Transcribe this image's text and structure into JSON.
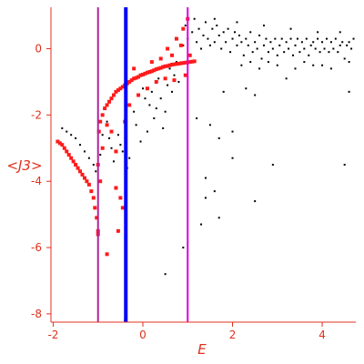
{
  "chart_data": {
    "type": "scatter",
    "title": "",
    "xlabel": "E",
    "ylabel": "<J3>",
    "xlim": [
      -2.05,
      4.75
    ],
    "ylim": [
      -8.25,
      1.25
    ],
    "xticks": [
      "-2",
      "0",
      "2",
      "4"
    ],
    "yticks": [
      "0",
      "-2",
      "-4",
      "-6",
      "-8"
    ],
    "xtick_values": [
      -2,
      0,
      2,
      4
    ],
    "ytick_values": [
      0,
      -2,
      -4,
      -6,
      -8
    ],
    "grid": false,
    "legend": "none",
    "colors": {
      "axis": "#e0301e",
      "black_points": "#000000",
      "red_points": "#ff1a1a",
      "vline_purple": "#b0249a",
      "vline_blue": "#0000ff",
      "vline_magenta": "#e000e0"
    },
    "vertical_lines": [
      {
        "x": -1.0,
        "color": "#b0249a",
        "width": 2
      },
      {
        "x": -0.38,
        "color": "#0000ff",
        "width": 4
      },
      {
        "x": 1.0,
        "color": "#e000e0",
        "width": 2
      }
    ],
    "series": [
      {
        "marker": "small-dot",
        "color": "#000000",
        "points": [
          [
            -1.8,
            -2.4
          ],
          [
            -1.7,
            -2.5
          ],
          [
            -1.6,
            -2.6
          ],
          [
            -1.5,
            -2.7
          ],
          [
            -1.4,
            -2.9
          ],
          [
            -1.3,
            -3.1
          ],
          [
            -1.2,
            -3.3
          ],
          [
            -1.1,
            -3.5
          ],
          [
            -1.05,
            -3.7
          ],
          [
            -0.95,
            -3.2
          ],
          [
            -0.9,
            -2.6
          ],
          [
            -0.8,
            -2.2
          ],
          [
            -0.75,
            -2.7
          ],
          [
            -0.7,
            -3.0
          ],
          [
            -0.65,
            -3.4
          ],
          [
            -0.55,
            -2.6
          ],
          [
            -0.5,
            -2.9
          ],
          [
            -0.45,
            -3.1
          ],
          [
            -0.35,
            -3.6
          ],
          [
            -0.3,
            -3.3
          ],
          [
            -0.2,
            -1.9
          ],
          [
            -0.15,
            -2.3
          ],
          [
            -0.05,
            -2.8
          ],
          [
            0.0,
            -1.2
          ],
          [
            0.05,
            -1.5
          ],
          [
            0.1,
            -2.5
          ],
          [
            0.15,
            -1.7
          ],
          [
            0.2,
            -1.3
          ],
          [
            0.25,
            -2.1
          ],
          [
            0.3,
            -1.8
          ],
          [
            0.35,
            -0.9
          ],
          [
            0.4,
            -1.5
          ],
          [
            0.45,
            -2.4
          ],
          [
            0.5,
            -1.9
          ],
          [
            0.55,
            -1.1
          ],
          [
            0.6,
            -0.6
          ],
          [
            0.65,
            -1.3
          ],
          [
            0.7,
            -0.8
          ],
          [
            0.75,
            -0.4
          ],
          [
            0.8,
            -1.0
          ],
          [
            0.9,
            0.1
          ],
          [
            0.95,
            0.7
          ],
          [
            1.0,
            0.3
          ],
          [
            1.05,
            -0.2
          ],
          [
            1.1,
            0.5
          ],
          [
            1.15,
            0.9
          ],
          [
            1.2,
            0.2
          ],
          [
            1.25,
            0.6
          ],
          [
            1.3,
            0.0
          ],
          [
            1.35,
            0.4
          ],
          [
            1.4,
            0.8
          ],
          [
            1.45,
            0.3
          ],
          [
            1.5,
            0.1
          ],
          [
            1.55,
            0.6
          ],
          [
            1.6,
            0.2
          ],
          [
            1.65,
            0.7
          ],
          [
            1.7,
            0.4
          ],
          [
            1.75,
            0.0
          ],
          [
            1.8,
            0.5
          ],
          [
            1.85,
            0.2
          ],
          [
            1.9,
            0.6
          ],
          [
            1.95,
            -0.1
          ],
          [
            2.0,
            0.3
          ],
          [
            2.05,
            0.5
          ],
          [
            2.1,
            0.1
          ],
          [
            2.15,
            0.4
          ],
          [
            2.2,
            0.2
          ],
          [
            2.25,
            -0.2
          ],
          [
            2.3,
            0.3
          ],
          [
            2.35,
            0.1
          ],
          [
            2.4,
            0.5
          ],
          [
            2.45,
            -0.1
          ],
          [
            2.5,
            0.2
          ],
          [
            2.55,
            0.0
          ],
          [
            2.6,
            0.4
          ],
          [
            2.65,
            -0.3
          ],
          [
            2.7,
            0.1
          ],
          [
            2.75,
            0.3
          ],
          [
            2.8,
            -0.1
          ],
          [
            2.85,
            0.2
          ],
          [
            2.9,
            0.0
          ],
          [
            2.95,
            0.3
          ],
          [
            3.0,
            -0.2
          ],
          [
            3.05,
            0.1
          ],
          [
            3.1,
            0.3
          ],
          [
            3.15,
            -0.1
          ],
          [
            3.2,
            0.2
          ],
          [
            3.25,
            0.0
          ],
          [
            3.3,
            0.3
          ],
          [
            3.35,
            -0.2
          ],
          [
            3.4,
            0.1
          ],
          [
            3.45,
            0.3
          ],
          [
            3.5,
            -0.1
          ],
          [
            3.55,
            0.2
          ],
          [
            3.6,
            0.0
          ],
          [
            3.65,
            0.3
          ],
          [
            3.7,
            -0.2
          ],
          [
            3.75,
            0.1
          ],
          [
            3.8,
            0.2
          ],
          [
            3.85,
            0.0
          ],
          [
            3.9,
            0.3
          ],
          [
            3.95,
            -0.1
          ],
          [
            4.0,
            0.2
          ],
          [
            4.05,
            0.0
          ],
          [
            4.1,
            0.3
          ],
          [
            4.15,
            -0.1
          ],
          [
            4.2,
            0.2
          ],
          [
            4.25,
            0.0
          ],
          [
            4.3,
            0.3
          ],
          [
            4.35,
            -0.1
          ],
          [
            4.4,
            0.1
          ],
          [
            4.45,
            0.2
          ],
          [
            4.5,
            -0.3
          ],
          [
            4.55,
            0.1
          ],
          [
            4.6,
            0.2
          ],
          [
            4.65,
            0.0
          ],
          [
            4.7,
            0.3
          ],
          [
            2.2,
            -0.5
          ],
          [
            2.6,
            -0.6
          ],
          [
            3.0,
            -0.5
          ],
          [
            3.4,
            -0.6
          ],
          [
            3.8,
            -0.5
          ],
          [
            4.2,
            -0.6
          ],
          [
            2.4,
            -0.4
          ],
          [
            2.8,
            -0.4
          ],
          [
            3.6,
            -0.4
          ],
          [
            4.0,
            -0.5
          ],
          [
            4.6,
            -0.4
          ],
          [
            1.6,
            0.9
          ],
          [
            2.1,
            0.8
          ],
          [
            2.7,
            0.7
          ],
          [
            3.3,
            0.6
          ],
          [
            3.9,
            0.5
          ],
          [
            4.4,
            0.5
          ],
          [
            1.2,
            -2.1
          ],
          [
            1.5,
            -2.3
          ],
          [
            1.8,
            -1.3
          ],
          [
            2.0,
            -3.3
          ],
          [
            2.3,
            -1.2
          ],
          [
            2.5,
            -1.4
          ],
          [
            3.2,
            -0.9
          ],
          [
            4.6,
            -1.3
          ],
          [
            1.4,
            -3.9
          ],
          [
            1.6,
            -4.3
          ],
          [
            1.7,
            -2.7
          ],
          [
            2.5,
            -4.6
          ],
          [
            2.9,
            -3.5
          ],
          [
            4.5,
            -3.5
          ],
          [
            1.3,
            -5.3
          ],
          [
            1.7,
            -5.1
          ],
          [
            0.9,
            -6.0
          ],
          [
            0.5,
            -6.8
          ],
          [
            -0.4,
            -8.2
          ],
          [
            1.4,
            -4.5
          ],
          [
            2.0,
            -2.5
          ]
        ]
      },
      {
        "marker": "square",
        "color": "#ff1a1a",
        "points": [
          [
            -1.9,
            -2.8
          ],
          [
            -1.85,
            -2.85
          ],
          [
            -1.8,
            -2.9
          ],
          [
            -1.75,
            -3.0
          ],
          [
            -1.7,
            -3.1
          ],
          [
            -1.65,
            -3.2
          ],
          [
            -1.6,
            -3.3
          ],
          [
            -1.55,
            -3.4
          ],
          [
            -1.5,
            -3.5
          ],
          [
            -1.45,
            -3.6
          ],
          [
            -1.4,
            -3.7
          ],
          [
            -1.35,
            -3.8
          ],
          [
            -1.3,
            -3.9
          ],
          [
            -1.25,
            -4.0
          ],
          [
            -1.2,
            -4.1
          ],
          [
            -1.15,
            -4.3
          ],
          [
            -1.1,
            -4.5
          ],
          [
            -1.07,
            -4.8
          ],
          [
            -1.03,
            -5.1
          ],
          [
            -1.0,
            -5.5
          ],
          [
            -1.0,
            -5.6
          ],
          [
            -0.8,
            -6.2
          ],
          [
            -0.5,
            -4.5
          ],
          [
            -0.6,
            -4.2
          ],
          [
            -0.45,
            -4.8
          ],
          [
            -0.55,
            -5.5
          ],
          [
            -0.98,
            -2.5
          ],
          [
            -0.95,
            -2.2
          ],
          [
            -0.9,
            -2.0
          ],
          [
            -0.85,
            -1.8
          ],
          [
            -0.8,
            -1.7
          ],
          [
            -0.75,
            -1.6
          ],
          [
            -0.7,
            -1.5
          ],
          [
            -0.65,
            -1.4
          ],
          [
            -0.6,
            -1.3
          ],
          [
            -0.55,
            -1.25
          ],
          [
            -0.5,
            -1.2
          ],
          [
            -0.45,
            -1.15
          ],
          [
            -0.4,
            -1.1
          ],
          [
            -0.35,
            -1.05
          ],
          [
            -0.3,
            -1.0
          ],
          [
            -0.25,
            -0.95
          ],
          [
            -0.2,
            -0.9
          ],
          [
            -0.15,
            -0.88
          ],
          [
            -0.1,
            -0.85
          ],
          [
            -0.05,
            -0.8
          ],
          [
            0.0,
            -0.78
          ],
          [
            0.05,
            -0.75
          ],
          [
            0.1,
            -0.72
          ],
          [
            0.15,
            -0.7
          ],
          [
            0.2,
            -0.68
          ],
          [
            0.25,
            -0.65
          ],
          [
            0.3,
            -0.62
          ],
          [
            0.35,
            -0.6
          ],
          [
            0.4,
            -0.58
          ],
          [
            0.45,
            -0.55
          ],
          [
            0.5,
            -0.53
          ],
          [
            0.55,
            -0.52
          ],
          [
            0.6,
            -0.5
          ],
          [
            0.65,
            -0.48
          ],
          [
            0.7,
            -0.47
          ],
          [
            0.75,
            -0.46
          ],
          [
            0.8,
            -0.45
          ],
          [
            0.85,
            -0.44
          ],
          [
            0.9,
            -0.43
          ],
          [
            0.95,
            -0.42
          ],
          [
            1.0,
            -0.41
          ],
          [
            1.05,
            -0.4
          ],
          [
            1.1,
            -0.39
          ],
          [
            1.15,
            -0.38
          ],
          [
            -0.9,
            -3.0
          ],
          [
            -0.8,
            -2.3
          ],
          [
            -0.7,
            -2.5
          ],
          [
            -0.6,
            -3.1
          ],
          [
            -0.4,
            -2.2
          ],
          [
            -0.3,
            -1.7
          ],
          [
            -0.1,
            -1.4
          ],
          [
            0.1,
            -1.2
          ],
          [
            0.3,
            -1.0
          ],
          [
            0.5,
            -0.9
          ],
          [
            0.7,
            -0.95
          ],
          [
            0.4,
            -0.3
          ],
          [
            0.55,
            0.0
          ],
          [
            0.65,
            -0.2
          ],
          [
            0.75,
            0.3
          ],
          [
            0.85,
            0.1
          ],
          [
            0.9,
            0.6
          ],
          [
            1.0,
            0.9
          ],
          [
            0.95,
            -0.8
          ],
          [
            1.05,
            -0.2
          ],
          [
            0.2,
            -0.4
          ],
          [
            -0.2,
            -0.6
          ],
          [
            -1.0,
            -3.5
          ],
          [
            -0.95,
            -4.0
          ]
        ]
      }
    ]
  }
}
